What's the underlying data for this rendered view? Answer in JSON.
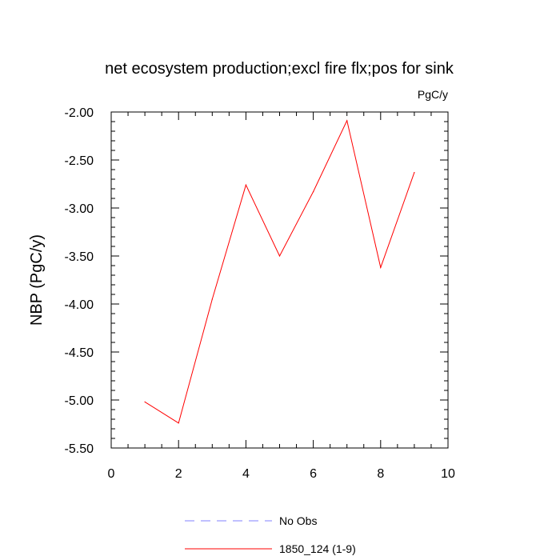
{
  "chart_data": {
    "type": "line",
    "title": "net ecosystem production;excl fire flx;pos for sink",
    "units_label": "PgC/y",
    "ylabel": "NBP  (PgC/y)",
    "xlabel": "",
    "xlim": [
      0,
      10
    ],
    "ylim": [
      -5.5,
      -2.0
    ],
    "x_ticks": [
      0,
      2,
      4,
      6,
      8,
      10
    ],
    "x_tick_labels": [
      "0",
      "2",
      "4",
      "6",
      "8",
      "10"
    ],
    "y_ticks": [
      -2.0,
      -2.5,
      -3.0,
      -3.5,
      -4.0,
      -4.5,
      -5.0,
      -5.5
    ],
    "y_tick_labels": [
      "-2.00",
      "-2.50",
      "-3.00",
      "-3.50",
      "-4.00",
      "-4.50",
      "-5.00",
      "-5.50"
    ],
    "grid": false,
    "legend_position": "bottom",
    "series": [
      {
        "name": "No Obs",
        "color": "#8080ff",
        "dash": "dashed",
        "x": [],
        "values": []
      },
      {
        "name": "1850_124 (1-9)",
        "color": "#ff0000",
        "dash": "solid",
        "x": [
          1,
          2,
          3,
          4,
          5,
          6,
          7,
          8,
          9
        ],
        "values": [
          -5.02,
          -5.24,
          -3.95,
          -2.76,
          -3.5,
          -2.83,
          -2.09,
          -3.62,
          -2.63
        ]
      }
    ]
  }
}
